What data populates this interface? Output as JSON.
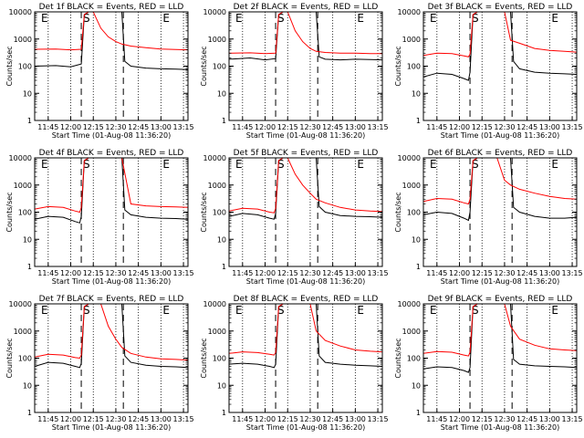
{
  "figure": {
    "xlabel": "Start Time (01-Aug-08 11:36:20)",
    "ylabel": "Counts/sec",
    "ytick_labels": [
      "1",
      "10",
      "100",
      "1000",
      "10000"
    ],
    "xtick_labels": [
      "11:45",
      "12:00",
      "12:15",
      "12:30",
      "12:45",
      "13:00",
      "13:15"
    ],
    "interval_markers": [
      "E",
      "S",
      "E"
    ],
    "colors": {
      "events": "#000000",
      "lld": "#ff0000",
      "axes": "#000000"
    }
  },
  "chart_data": [
    {
      "type": "line",
      "title": "Det 1f BLACK = Events, RED = LLD",
      "xlabel": "Start Time (01-Aug-08 11:36:20)",
      "ylabel": "Counts/sec",
      "yscale": "log",
      "ylim": [
        1,
        10000
      ],
      "xlim": [
        "11:36",
        "13:18"
      ],
      "marker_times": [
        "12:07",
        "12:35"
      ],
      "series": [
        {
          "name": "Events",
          "color": "#000000",
          "x": [
            "11:36",
            "11:50",
            "12:00",
            "12:07",
            "12:09",
            "12:12",
            "12:15",
            "12:20",
            "12:25",
            "12:30",
            "12:34",
            "12:36",
            "12:40",
            "12:50",
            "13:00",
            "13:10",
            "13:18"
          ],
          "values": [
            100,
            105,
            95,
            120,
            8000,
            10000,
            10000,
            10000,
            10000,
            10000,
            10000,
            150,
            100,
            85,
            80,
            78,
            75
          ]
        },
        {
          "name": "LLD",
          "color": "#ff0000",
          "x": [
            "11:36",
            "11:50",
            "12:00",
            "12:07",
            "12:09",
            "12:12",
            "12:15",
            "12:20",
            "12:25",
            "12:30",
            "12:34",
            "12:40",
            "12:50",
            "13:00",
            "13:10",
            "13:18"
          ],
          "values": [
            420,
            430,
            400,
            420,
            8000,
            10000,
            10000,
            2500,
            1200,
            800,
            650,
            550,
            480,
            430,
            410,
            400
          ]
        }
      ]
    },
    {
      "type": "line",
      "title": "Det 2f BLACK = Events, RED = LLD",
      "xlabel": "Start Time (01-Aug-08 11:36:20)",
      "ylabel": "Counts/sec",
      "yscale": "log",
      "ylim": [
        1,
        10000
      ],
      "xlim": [
        "11:36",
        "13:18"
      ],
      "marker_times": [
        "12:07",
        "12:35"
      ],
      "series": [
        {
          "name": "Events",
          "color": "#000000",
          "x": [
            "11:36",
            "11:50",
            "12:00",
            "12:07",
            "12:09",
            "12:12",
            "12:15",
            "12:20",
            "12:25",
            "12:30",
            "12:34",
            "12:36",
            "12:40",
            "12:50",
            "13:00",
            "13:10",
            "13:18"
          ],
          "values": [
            180,
            200,
            170,
            190,
            8000,
            10000,
            10000,
            10000,
            10000,
            10000,
            10000,
            220,
            180,
            170,
            180,
            175,
            170
          ]
        },
        {
          "name": "LLD",
          "color": "#ff0000",
          "x": [
            "11:36",
            "11:50",
            "12:00",
            "12:07",
            "12:09",
            "12:12",
            "12:15",
            "12:20",
            "12:25",
            "12:30",
            "12:34",
            "12:40",
            "12:50",
            "13:00",
            "13:10",
            "13:18"
          ],
          "values": [
            300,
            310,
            290,
            300,
            8000,
            10000,
            10000,
            2000,
            800,
            450,
            350,
            320,
            300,
            300,
            290,
            290
          ]
        }
      ]
    },
    {
      "type": "line",
      "title": "Det 3f BLACK = Events, RED = LLD",
      "xlabel": "Start Time (01-Aug-08 11:36:20)",
      "ylabel": "Counts/sec",
      "yscale": "log",
      "ylim": [
        1,
        10000
      ],
      "xlim": [
        "11:36",
        "13:18"
      ],
      "marker_times": [
        "12:07",
        "12:35"
      ],
      "series": [
        {
          "name": "Events",
          "color": "#000000",
          "x": [
            "11:36",
            "11:45",
            "11:55",
            "12:03",
            "12:06",
            "12:07",
            "12:09",
            "12:12",
            "12:15",
            "12:20",
            "12:25",
            "12:30",
            "12:34",
            "12:36",
            "12:40",
            "12:50",
            "13:00",
            "13:10",
            "13:18"
          ],
          "values": [
            40,
            55,
            50,
            35,
            30,
            60,
            8000,
            10000,
            10000,
            10000,
            10000,
            10000,
            10000,
            150,
            80,
            60,
            55,
            52,
            50
          ]
        },
        {
          "name": "LLD",
          "color": "#ff0000",
          "x": [
            "11:36",
            "11:45",
            "11:55",
            "12:03",
            "12:06",
            "12:07",
            "12:09",
            "12:12",
            "12:15",
            "12:20",
            "12:25",
            "12:30",
            "12:34",
            "12:40",
            "12:50",
            "13:00",
            "13:10",
            "13:18"
          ],
          "values": [
            250,
            300,
            290,
            240,
            220,
            280,
            8000,
            10000,
            10000,
            10000,
            10000,
            10000,
            900,
            700,
            450,
            380,
            350,
            330
          ]
        }
      ]
    },
    {
      "type": "line",
      "title": "Det 4f BLACK = Events, RED = LLD",
      "xlabel": "Start Time (01-Aug-08 11:36:20)",
      "ylabel": "Counts/sec",
      "yscale": "log",
      "ylim": [
        1,
        10000
      ],
      "xlim": [
        "11:36",
        "13:18"
      ],
      "marker_times": [
        "12:07",
        "12:35"
      ],
      "series": [
        {
          "name": "Events",
          "color": "#000000",
          "x": [
            "11:36",
            "11:45",
            "11:55",
            "12:03",
            "12:06",
            "12:07",
            "12:09",
            "12:12",
            "12:15",
            "12:20",
            "12:25",
            "12:30",
            "12:34",
            "12:36",
            "12:40",
            "12:50",
            "13:00",
            "13:10",
            "13:18"
          ],
          "values": [
            55,
            70,
            65,
            45,
            40,
            70,
            8000,
            10000,
            10000,
            10000,
            10000,
            10000,
            10000,
            120,
            80,
            65,
            60,
            58,
            55
          ]
        },
        {
          "name": "LLD",
          "color": "#ff0000",
          "x": [
            "11:36",
            "11:45",
            "11:55",
            "12:03",
            "12:06",
            "12:07",
            "12:09",
            "12:12",
            "12:15",
            "12:20",
            "12:25",
            "12:30",
            "12:34",
            "12:40",
            "12:50",
            "13:00",
            "13:10",
            "13:18"
          ],
          "values": [
            130,
            160,
            150,
            110,
            100,
            150,
            8000,
            10000,
            10000,
            10000,
            10000,
            10000,
            10000,
            200,
            170,
            160,
            155,
            150
          ]
        }
      ]
    },
    {
      "type": "line",
      "title": "Det 5f BLACK = Events, RED = LLD",
      "xlabel": "Start Time (01-Aug-08 11:36:20)",
      "ylabel": "Counts/sec",
      "yscale": "log",
      "ylim": [
        1,
        10000
      ],
      "xlim": [
        "11:36",
        "13:18"
      ],
      "marker_times": [
        "12:07",
        "12:35"
      ],
      "series": [
        {
          "name": "Events",
          "color": "#000000",
          "x": [
            "11:36",
            "11:45",
            "11:55",
            "12:03",
            "12:06",
            "12:07",
            "12:09",
            "12:12",
            "12:15",
            "12:20",
            "12:25",
            "12:30",
            "12:34",
            "12:36",
            "12:40",
            "12:50",
            "13:00",
            "13:10",
            "13:18"
          ],
          "values": [
            70,
            90,
            80,
            60,
            55,
            90,
            8000,
            10000,
            10000,
            10000,
            10000,
            10000,
            10000,
            160,
            100,
            75,
            70,
            68,
            65
          ]
        },
        {
          "name": "LLD",
          "color": "#ff0000",
          "x": [
            "11:36",
            "11:45",
            "11:55",
            "12:03",
            "12:06",
            "12:07",
            "12:09",
            "12:12",
            "12:15",
            "12:20",
            "12:25",
            "12:30",
            "12:34",
            "12:40",
            "12:50",
            "13:00",
            "13:10",
            "13:18"
          ],
          "values": [
            110,
            140,
            130,
            100,
            95,
            140,
            8000,
            10000,
            10000,
            2500,
            1000,
            500,
            300,
            220,
            150,
            120,
            110,
            105
          ]
        }
      ]
    },
    {
      "type": "line",
      "title": "Det 6f BLACK = Events, RED = LLD",
      "xlabel": "Start Time (01-Aug-08 11:36:20)",
      "ylabel": "Counts/sec",
      "yscale": "log",
      "ylim": [
        1,
        10000
      ],
      "xlim": [
        "11:36",
        "13:18"
      ],
      "marker_times": [
        "12:07",
        "12:35"
      ],
      "series": [
        {
          "name": "Events",
          "color": "#000000",
          "x": [
            "11:36",
            "11:45",
            "11:55",
            "12:03",
            "12:06",
            "12:07",
            "12:09",
            "12:12",
            "12:15",
            "12:20",
            "12:25",
            "12:30",
            "12:34",
            "12:36",
            "12:40",
            "12:50",
            "13:00",
            "13:10",
            "13:18"
          ],
          "values": [
            80,
            100,
            90,
            60,
            50,
            100,
            8000,
            10000,
            10000,
            10000,
            10000,
            10000,
            10000,
            150,
            100,
            70,
            60,
            60,
            65
          ]
        },
        {
          "name": "LLD",
          "color": "#ff0000",
          "x": [
            "11:36",
            "11:45",
            "11:55",
            "12:03",
            "12:06",
            "12:07",
            "12:09",
            "12:12",
            "12:15",
            "12:20",
            "12:25",
            "12:30",
            "12:34",
            "12:40",
            "12:50",
            "13:00",
            "13:10",
            "13:18"
          ],
          "values": [
            250,
            320,
            300,
            220,
            200,
            300,
            8000,
            10000,
            10000,
            10000,
            10000,
            1500,
            1000,
            700,
            500,
            380,
            320,
            300
          ]
        }
      ]
    },
    {
      "type": "line",
      "title": "Det 7f BLACK = Events, RED = LLD",
      "xlabel": "Start Time (01-Aug-08 11:36:20)",
      "ylabel": "Counts/sec",
      "yscale": "log",
      "ylim": [
        1,
        10000
      ],
      "xlim": [
        "11:36",
        "13:18"
      ],
      "marker_times": [
        "12:07",
        "12:35"
      ],
      "series": [
        {
          "name": "Events",
          "color": "#000000",
          "x": [
            "11:36",
            "11:45",
            "11:55",
            "12:03",
            "12:06",
            "12:07",
            "12:09",
            "12:12",
            "12:15",
            "12:20",
            "12:25",
            "12:30",
            "12:34",
            "12:36",
            "12:40",
            "12:50",
            "13:00",
            "13:10",
            "13:18"
          ],
          "values": [
            50,
            70,
            65,
            50,
            45,
            65,
            8000,
            10000,
            10000,
            10000,
            10000,
            10000,
            10000,
            120,
            70,
            55,
            50,
            48,
            45
          ]
        },
        {
          "name": "LLD",
          "color": "#ff0000",
          "x": [
            "11:36",
            "11:45",
            "11:55",
            "12:03",
            "12:06",
            "12:07",
            "12:09",
            "12:12",
            "12:15",
            "12:20",
            "12:25",
            "12:30",
            "12:34",
            "12:40",
            "12:50",
            "13:00",
            "13:10",
            "13:18"
          ],
          "values": [
            110,
            140,
            130,
            105,
            100,
            130,
            8000,
            10000,
            10000,
            10000,
            1500,
            500,
            250,
            150,
            110,
            95,
            90,
            85
          ]
        }
      ]
    },
    {
      "type": "line",
      "title": "Det 8f BLACK = Events, RED = LLD",
      "xlabel": "Start Time (01-Aug-08 11:36:20)",
      "ylabel": "Counts/sec",
      "yscale": "log",
      "ylim": [
        1,
        10000
      ],
      "xlim": [
        "11:36",
        "13:18"
      ],
      "marker_times": [
        "12:07",
        "12:35"
      ],
      "series": [
        {
          "name": "Events",
          "color": "#000000",
          "x": [
            "11:36",
            "11:45",
            "11:55",
            "12:03",
            "12:06",
            "12:07",
            "12:09",
            "12:12",
            "12:15",
            "12:20",
            "12:25",
            "12:30",
            "12:34",
            "12:36",
            "12:40",
            "12:50",
            "13:00",
            "13:10",
            "13:18"
          ],
          "values": [
            60,
            65,
            60,
            50,
            45,
            60,
            8000,
            10000,
            10000,
            10000,
            10000,
            10000,
            10000,
            120,
            70,
            60,
            55,
            52,
            50
          ]
        },
        {
          "name": "LLD",
          "color": "#ff0000",
          "x": [
            "11:36",
            "11:45",
            "11:55",
            "12:03",
            "12:06",
            "12:07",
            "12:09",
            "12:12",
            "12:15",
            "12:20",
            "12:25",
            "12:30",
            "12:34",
            "12:40",
            "12:50",
            "13:00",
            "13:10",
            "13:18"
          ],
          "values": [
            150,
            170,
            160,
            140,
            130,
            160,
            8000,
            10000,
            10000,
            10000,
            10000,
            10000,
            1000,
            450,
            280,
            200,
            180,
            170
          ]
        }
      ]
    },
    {
      "type": "line",
      "title": "Det 9f BLACK = Events, RED = LLD",
      "xlabel": "Start Time (01-Aug-08 11:36:20)",
      "ylabel": "Counts/sec",
      "yscale": "log",
      "ylim": [
        1,
        10000
      ],
      "xlim": [
        "11:36",
        "13:18"
      ],
      "marker_times": [
        "12:07",
        "12:35"
      ],
      "series": [
        {
          "name": "Events",
          "color": "#000000",
          "x": [
            "11:36",
            "11:45",
            "11:55",
            "12:03",
            "12:06",
            "12:07",
            "12:09",
            "12:12",
            "12:15",
            "12:20",
            "12:25",
            "12:30",
            "12:34",
            "12:36",
            "12:40",
            "12:50",
            "13:00",
            "13:10",
            "13:18"
          ],
          "values": [
            40,
            48,
            45,
            35,
            30,
            45,
            8000,
            10000,
            10000,
            10000,
            10000,
            10000,
            10000,
            90,
            60,
            52,
            50,
            48,
            45
          ]
        },
        {
          "name": "LLD",
          "color": "#ff0000",
          "x": [
            "11:36",
            "11:45",
            "11:55",
            "12:03",
            "12:06",
            "12:07",
            "12:09",
            "12:12",
            "12:15",
            "12:20",
            "12:25",
            "12:30",
            "12:34",
            "12:40",
            "12:50",
            "13:00",
            "13:10",
            "13:18"
          ],
          "values": [
            150,
            175,
            165,
            130,
            120,
            165,
            8000,
            10000,
            10000,
            10000,
            10000,
            10000,
            1500,
            500,
            300,
            220,
            200,
            190
          ]
        }
      ]
    }
  ]
}
